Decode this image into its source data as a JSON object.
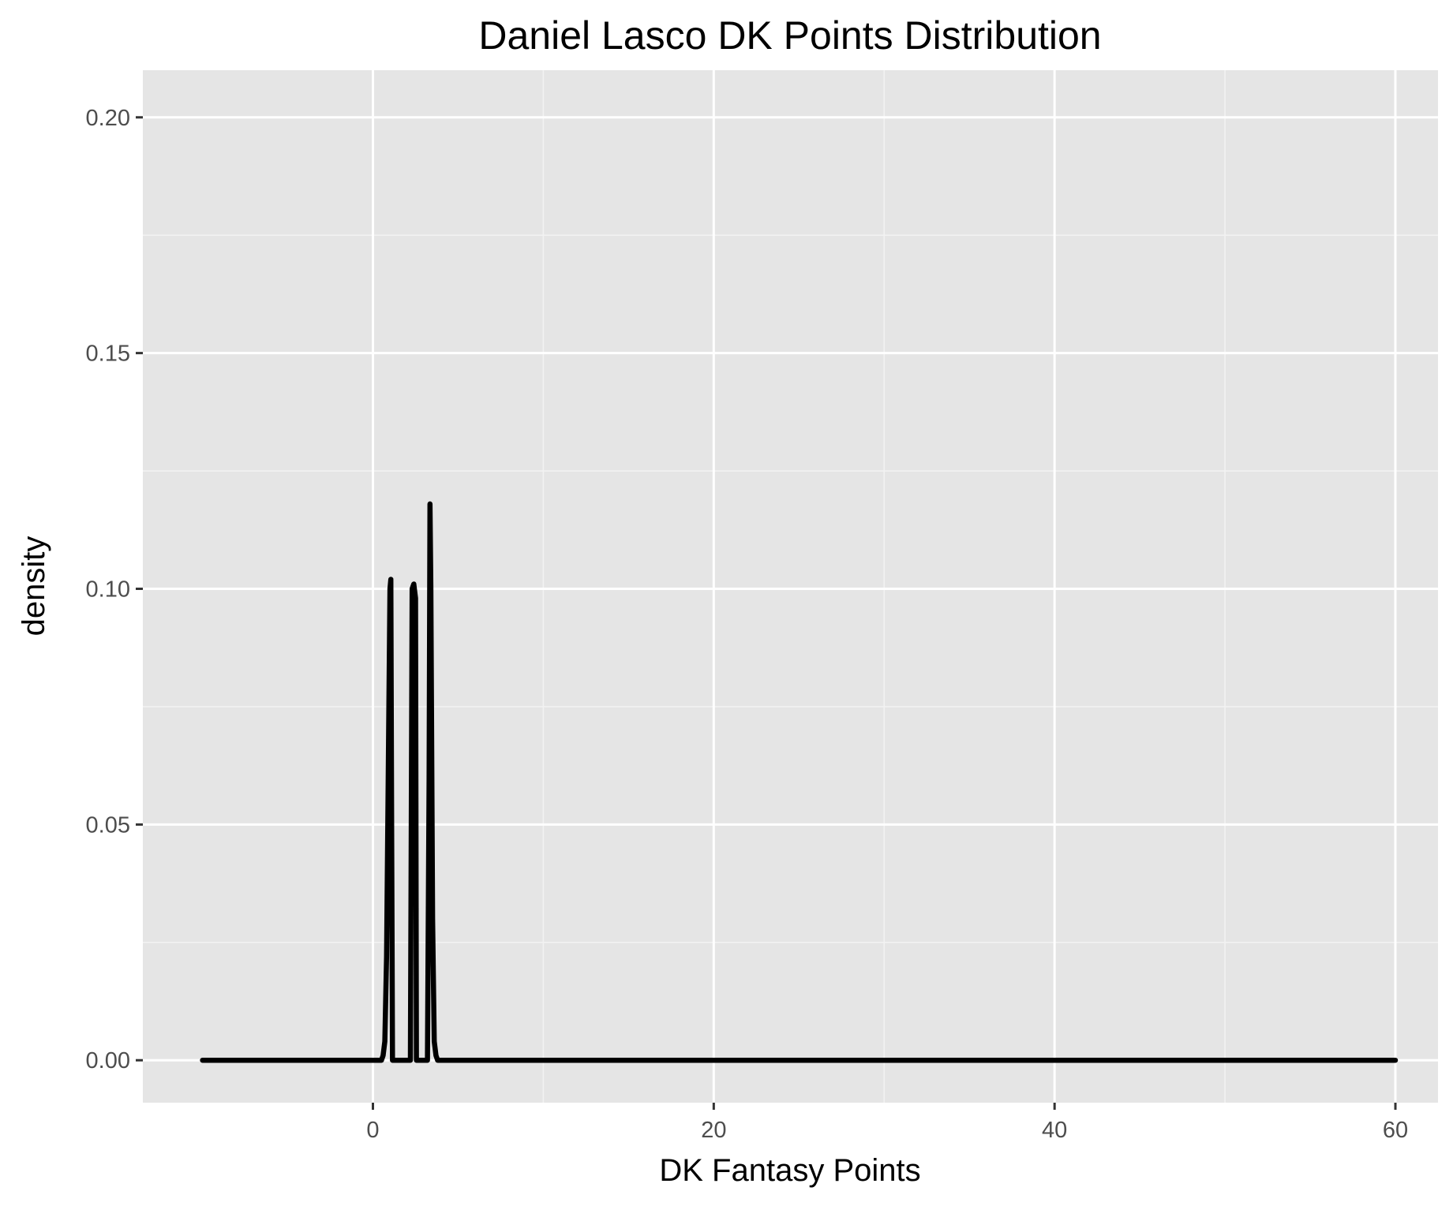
{
  "chart_data": {
    "type": "line",
    "title": "Daniel Lasco DK Points Distribution",
    "xlabel": "DK Fantasy Points",
    "ylabel": "density",
    "xlim": [
      -13.5,
      62.5
    ],
    "ylim": [
      -0.009,
      0.21
    ],
    "x_ticks": [
      0,
      20,
      40,
      60
    ],
    "x_tick_labels": [
      "0",
      "20",
      "40",
      "60"
    ],
    "x_minor_ticks": [
      10,
      30,
      50
    ],
    "y_ticks": [
      0.0,
      0.05,
      0.1,
      0.15,
      0.2
    ],
    "y_tick_labels": [
      "0.00",
      "0.05",
      "0.10",
      "0.15",
      "0.20"
    ],
    "y_minor_ticks": [
      0.025,
      0.075,
      0.125,
      0.175
    ],
    "grid": true,
    "legend": "none",
    "series": [
      {
        "color": "#000000",
        "x": [
          -10,
          0.5,
          0.6,
          0.7,
          0.8,
          0.9,
          1.0,
          1.05,
          1.1,
          1.15,
          2.2,
          2.25,
          2.3,
          2.4,
          2.5,
          2.55,
          3.2,
          3.3,
          3.35,
          3.4,
          3.5,
          3.6,
          3.7,
          3.8,
          60
        ],
        "y": [
          0,
          0,
          0.001,
          0.004,
          0.022,
          0.06,
          0.1,
          0.102,
          0.05,
          0,
          0,
          0.05,
          0.1,
          0.101,
          0.098,
          0,
          0,
          0.06,
          0.118,
          0.1,
          0.03,
          0.004,
          0.001,
          0,
          0
        ]
      }
    ]
  },
  "colors": {
    "panel_background": "#e5e5e5",
    "grid_major": "#ffffff",
    "grid_minor": "#f2f2f2",
    "line": "#000000",
    "tick_text": "#4d4d4d"
  }
}
